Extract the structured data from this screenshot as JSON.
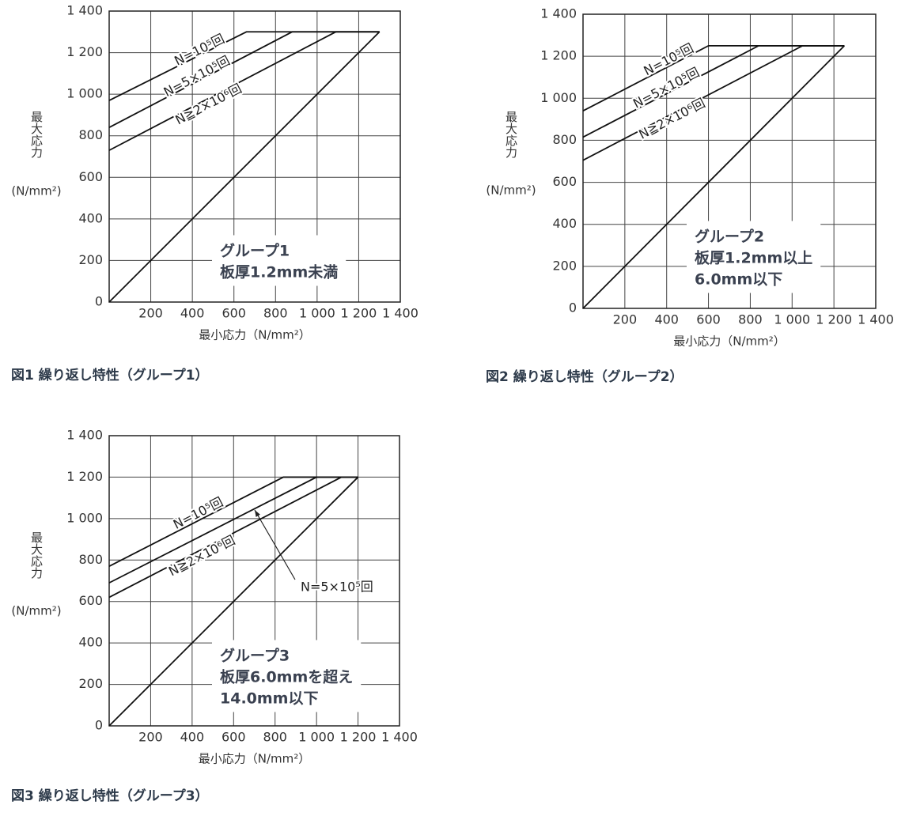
{
  "chart_data": [
    {
      "type": "line",
      "caption": "図1 繰り返し特性（グループ1）",
      "xlabel": "最小応力（N/mm²）",
      "ylabel": "最大応力",
      "ylabel_unit": "(N/mm²)",
      "annotation": [
        "グループ1",
        "板厚1.2mm未満"
      ],
      "xlim": [
        0,
        1400
      ],
      "ylim": [
        0,
        1400
      ],
      "xticks": [
        200,
        400,
        600,
        800,
        {
          "value": 1000,
          "label": "1 000"
        },
        {
          "value": 1200,
          "label": "1 200"
        },
        {
          "value": 1400,
          "label": "1 400"
        }
      ],
      "yticks": [
        0,
        200,
        400,
        600,
        800,
        {
          "value": 1000,
          "label": "1 000"
        },
        {
          "value": 1200,
          "label": "1 200"
        },
        {
          "value": 1400,
          "label": "1 400"
        }
      ],
      "grid": true,
      "series": [
        {
          "name": "N=10⁵回",
          "color": "#111111",
          "x": [
            0,
            660,
            1300
          ],
          "values": [
            970,
            1300,
            1300
          ]
        },
        {
          "name": "N=5×10⁵回",
          "color": "#111111",
          "x": [
            0,
            880,
            1300
          ],
          "values": [
            840,
            1300,
            1300
          ]
        },
        {
          "name": "N≧2×10⁶回",
          "color": "#111111",
          "x": [
            0,
            1090,
            1300
          ],
          "values": [
            730,
            1300,
            1300
          ]
        },
        {
          "color": "#111111",
          "x": [
            0,
            1300
          ],
          "values": [
            0,
            1300
          ]
        }
      ]
    },
    {
      "type": "line",
      "caption": "図2 繰り返し特性（グループ2）",
      "xlabel": "最小応力（N/mm²）",
      "ylabel": "最大応力",
      "ylabel_unit": "(N/mm²)",
      "annotation": [
        "グループ2",
        "板厚1.2mm以上",
        "6.0mm以下"
      ],
      "xlim": [
        0,
        1400
      ],
      "ylim": [
        0,
        1400
      ],
      "xticks": [
        200,
        400,
        600,
        800,
        {
          "value": 1000,
          "label": "1 000"
        },
        {
          "value": 1200,
          "label": "1 200"
        },
        {
          "value": 1400,
          "label": "1 400"
        }
      ],
      "yticks": [
        0,
        200,
        400,
        600,
        800,
        {
          "value": 1000,
          "label": "1 000"
        },
        {
          "value": 1200,
          "label": "1 200"
        },
        {
          "value": 1400,
          "label": "1 400"
        }
      ],
      "grid": true,
      "series": [
        {
          "name": "N=10⁵回",
          "color": "#111111",
          "x": [
            0,
            600,
            1250
          ],
          "values": [
            940,
            1250,
            1250
          ]
        },
        {
          "name": "N=5×10⁵回",
          "color": "#111111",
          "x": [
            0,
            840,
            1250
          ],
          "values": [
            815,
            1250,
            1250
          ]
        },
        {
          "name": "N≧2×10⁶回",
          "color": "#111111",
          "x": [
            0,
            1050,
            1250
          ],
          "values": [
            705,
            1250,
            1250
          ]
        },
        {
          "color": "#111111",
          "x": [
            0,
            1250
          ],
          "values": [
            0,
            1250
          ]
        }
      ]
    },
    {
      "type": "line",
      "caption": "図3 繰り返し特性（グループ3）",
      "xlabel": "最小応力（N/mm²）",
      "ylabel": "最大応力",
      "ylabel_unit": "(N/mm²)",
      "annotation": [
        "グループ3",
        "板厚6.0mmを超え",
        "14.0mm以下"
      ],
      "xlim": [
        0,
        1400
      ],
      "ylim": [
        0,
        1400
      ],
      "xticks": [
        200,
        400,
        600,
        800,
        {
          "value": 1000,
          "label": "1 000"
        },
        {
          "value": 1200,
          "label": "1 200"
        },
        {
          "value": 1400,
          "label": "1 400"
        }
      ],
      "yticks": [
        0,
        200,
        400,
        600,
        800,
        {
          "value": 1000,
          "label": "1 000"
        },
        {
          "value": 1200,
          "label": "1 200"
        },
        {
          "value": 1400,
          "label": "1 400"
        }
      ],
      "grid": true,
      "series": [
        {
          "name": "N=10⁵回",
          "color": "#111111",
          "x": [
            0,
            840,
            1200
          ],
          "values": [
            770,
            1200,
            1200
          ]
        },
        {
          "name": "N=5×10⁵回",
          "color": "#111111",
          "x": [
            0,
            1000,
            1200
          ],
          "values": [
            690,
            1200,
            1200
          ]
        },
        {
          "name": "N≧2×10⁶回",
          "color": "#111111",
          "x": [
            0,
            1120,
            1200
          ],
          "values": [
            620,
            1200,
            1200
          ]
        },
        {
          "color": "#111111",
          "x": [
            0,
            1200
          ],
          "values": [
            0,
            1200
          ]
        }
      ]
    }
  ]
}
